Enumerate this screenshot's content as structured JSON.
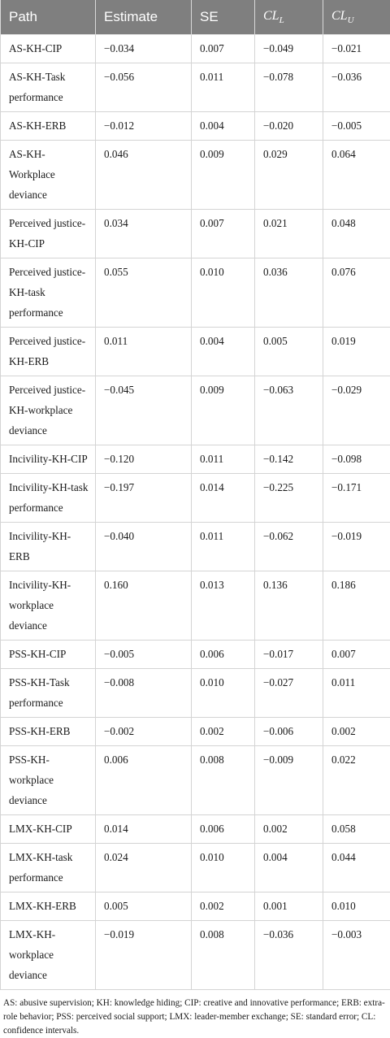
{
  "table": {
    "headers": {
      "path": "Path",
      "estimate": "Estimate",
      "se": "SE",
      "cll": "CLL",
      "clu": "CLU"
    },
    "rows": [
      {
        "path": "AS-KH-CIP",
        "estimate": "−0.034",
        "se": "0.007",
        "cll": "−0.049",
        "clu": "−0.021"
      },
      {
        "path": "AS-KH-Task performance",
        "estimate": "−0.056",
        "se": "0.011",
        "cll": "−0.078",
        "clu": "−0.036"
      },
      {
        "path": "AS-KH-ERB",
        "estimate": "−0.012",
        "se": "0.004",
        "cll": "−0.020",
        "clu": "−0.005"
      },
      {
        "path": "AS-KH-Workplace deviance",
        "estimate": "0.046",
        "se": "0.009",
        "cll": "0.029",
        "clu": "0.064"
      },
      {
        "path": "Perceived justice-KH-CIP",
        "estimate": "0.034",
        "se": "0.007",
        "cll": "0.021",
        "clu": "0.048"
      },
      {
        "path": "Perceived justice-KH-task performance",
        "estimate": "0.055",
        "se": "0.010",
        "cll": "0.036",
        "clu": "0.076"
      },
      {
        "path": "Perceived justice-KH-ERB",
        "estimate": "0.011",
        "se": "0.004",
        "cll": "0.005",
        "clu": "0.019"
      },
      {
        "path": "Perceived justice-KH-workplace deviance",
        "estimate": "−0.045",
        "se": "0.009",
        "cll": "−0.063",
        "clu": "−0.029"
      },
      {
        "path": "Incivility-KH-CIP",
        "estimate": "−0.120",
        "se": "0.011",
        "cll": "−0.142",
        "clu": "−0.098"
      },
      {
        "path": "Incivility-KH-task performance",
        "estimate": "−0.197",
        "se": "0.014",
        "cll": "−0.225",
        "clu": "−0.171"
      },
      {
        "path": "Incivility-KH-ERB",
        "estimate": "−0.040",
        "se": "0.011",
        "cll": "−0.062",
        "clu": "−0.019"
      },
      {
        "path": "Incivility-KH-workplace deviance",
        "estimate": "0.160",
        "se": "0.013",
        "cll": "0.136",
        "clu": "0.186"
      },
      {
        "path": "PSS-KH-CIP",
        "estimate": "−0.005",
        "se": "0.006",
        "cll": "−0.017",
        "clu": "0.007"
      },
      {
        "path": "PSS-KH-Task performance",
        "estimate": "−0.008",
        "se": "0.010",
        "cll": "−0.027",
        "clu": "0.011"
      },
      {
        "path": "PSS-KH-ERB",
        "estimate": "−0.002",
        "se": "0.002",
        "cll": "−0.006",
        "clu": "0.002"
      },
      {
        "path": "PSS-KH-workplace deviance",
        "estimate": "0.006",
        "se": "0.008",
        "cll": "−0.009",
        "clu": "0.022"
      },
      {
        "path": "LMX-KH-CIP",
        "estimate": "0.014",
        "se": "0.006",
        "cll": "0.002",
        "clu": "0.058"
      },
      {
        "path": "LMX-KH-task performance",
        "estimate": "0.024",
        "se": "0.010",
        "cll": "0.004",
        "clu": "0.044"
      },
      {
        "path": "LMX-KH-ERB",
        "estimate": "0.005",
        "se": "0.002",
        "cll": "0.001",
        "clu": "0.010"
      },
      {
        "path": "LMX-KH-workplace deviance",
        "estimate": "−0.019",
        "se": "0.008",
        "cll": "−0.036",
        "clu": "−0.003"
      }
    ]
  },
  "footnote": "AS: abusive supervision; KH: knowledge hiding; CIP: creative and innovative performance; ERB: extra-role behavior; PSS: perceived social support; LMX: leader-member exchange; SE: standard error; CL: confidence intervals."
}
